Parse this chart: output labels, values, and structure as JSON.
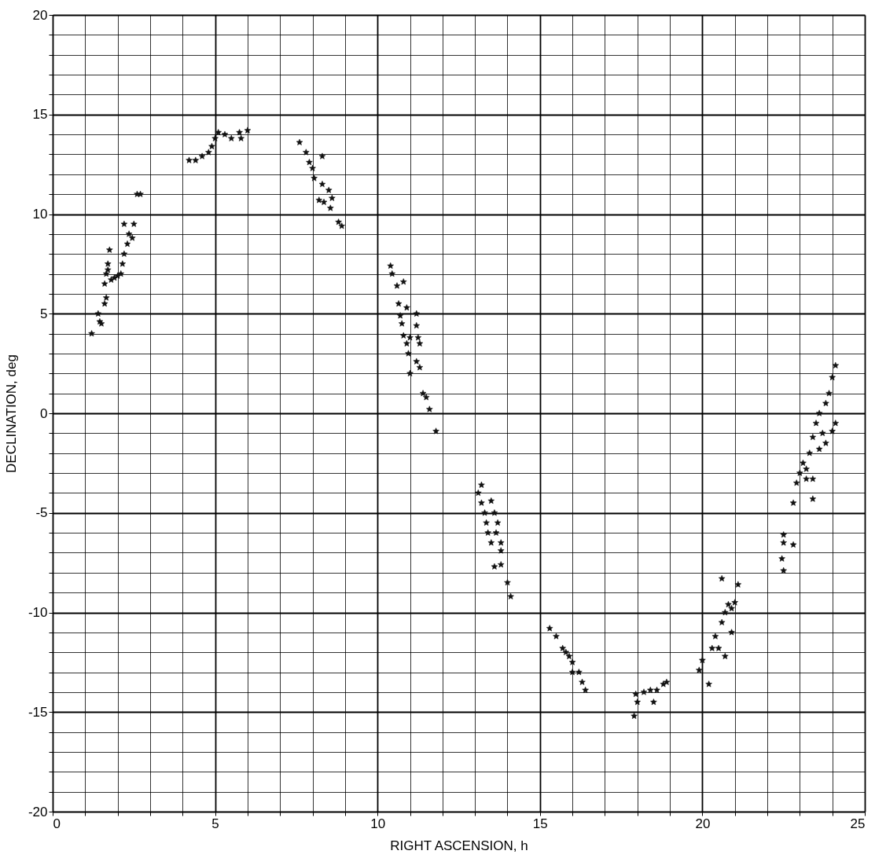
{
  "chart_data": {
    "type": "scatter",
    "xlabel": "RIGHT ASCENSION, h",
    "ylabel": "DECLINATION, deg",
    "xlim": [
      0,
      25
    ],
    "ylim": [
      -20,
      20
    ],
    "xticks": [
      0,
      {
        "value": 1,
        "label": null
      },
      {
        "value": 2,
        "label": null
      },
      {
        "value": 3,
        "label": null
      },
      {
        "value": 4,
        "label": null
      },
      5,
      {
        "value": 6,
        "label": null
      },
      {
        "value": 7,
        "label": null
      },
      {
        "value": 8,
        "label": null
      },
      {
        "value": 9,
        "label": null
      },
      10,
      {
        "value": 11,
        "label": null
      },
      {
        "value": 12,
        "label": null
      },
      {
        "value": 13,
        "label": null
      },
      {
        "value": 14,
        "label": null
      },
      15,
      {
        "value": 16,
        "label": null
      },
      {
        "value": 17,
        "label": null
      },
      {
        "value": 18,
        "label": null
      },
      {
        "value": 19,
        "label": null
      },
      20,
      {
        "value": 21,
        "label": null
      },
      {
        "value": 22,
        "label": null
      },
      {
        "value": 23,
        "label": null
      },
      {
        "value": 24,
        "label": null
      },
      25
    ],
    "yticks": [
      -20,
      {
        "value": -19,
        "label": null
      },
      {
        "value": -18,
        "label": null
      },
      {
        "value": -17,
        "label": null
      },
      {
        "value": -16,
        "label": null
      },
      -15,
      {
        "value": -14,
        "label": null
      },
      {
        "value": -13,
        "label": null
      },
      {
        "value": -12,
        "label": null
      },
      {
        "value": -11,
        "label": null
      },
      -10,
      {
        "value": -9,
        "label": null
      },
      {
        "value": -8,
        "label": null
      },
      {
        "value": -7,
        "label": null
      },
      {
        "value": -6,
        "label": null
      },
      -5,
      {
        "value": -4,
        "label": null
      },
      {
        "value": -3,
        "label": null
      },
      {
        "value": -2,
        "label": null
      },
      {
        "value": -1,
        "label": null
      },
      0,
      {
        "value": 1,
        "label": null
      },
      {
        "value": 2,
        "label": null
      },
      {
        "value": 3,
        "label": null
      },
      {
        "value": 4,
        "label": null
      },
      5,
      {
        "value": 6,
        "label": null
      },
      {
        "value": 7,
        "label": null
      },
      {
        "value": 8,
        "label": null
      },
      {
        "value": 9,
        "label": null
      },
      10,
      {
        "value": 11,
        "label": null
      },
      {
        "value": 12,
        "label": null
      },
      {
        "value": 13,
        "label": null
      },
      {
        "value": 14,
        "label": null
      },
      15,
      {
        "value": 16,
        "label": null
      },
      {
        "value": 17,
        "label": null
      },
      {
        "value": 18,
        "label": null
      },
      {
        "value": 19,
        "label": null
      },
      20
    ],
    "grid": true,
    "marker": "star",
    "series": [
      {
        "color": "#111111",
        "x": [
          1.2,
          1.4,
          1.45,
          1.5,
          1.6,
          1.65,
          1.6,
          1.65,
          1.7,
          1.75,
          1.8,
          1.9,
          1.7,
          2.0,
          2.1,
          2.15,
          2.2,
          2.3,
          2.35,
          2.2,
          2.5,
          2.45,
          2.6,
          2.7,
          4.2,
          4.4,
          4.6,
          4.8,
          4.9,
          5.0,
          5.1,
          5.3,
          5.5,
          5.8,
          5.75,
          6.0,
          7.6,
          7.8,
          7.9,
          8.0,
          8.05,
          8.3,
          8.3,
          8.2,
          8.35,
          8.5,
          8.6,
          8.55,
          8.8,
          8.9,
          10.4,
          10.45,
          10.6,
          10.8,
          10.65,
          10.7,
          10.75,
          10.9,
          10.8,
          10.9,
          10.95,
          11.0,
          11.2,
          11.2,
          11.25,
          11.3,
          11.2,
          11.3,
          11.0,
          11.4,
          11.5,
          11.6,
          11.8,
          13.1,
          13.2,
          13.2,
          13.3,
          13.35,
          13.4,
          13.5,
          13.5,
          13.6,
          13.7,
          13.65,
          13.8,
          13.8,
          13.6,
          13.8,
          14.0,
          14.1,
          15.3,
          15.5,
          15.7,
          15.8,
          15.9,
          16.0,
          16.0,
          16.2,
          16.3,
          16.4,
          17.9,
          17.95,
          18.0,
          18.2,
          18.4,
          18.6,
          18.5,
          18.8,
          18.9,
          19.9,
          20.0,
          20.2,
          20.3,
          20.4,
          20.5,
          20.6,
          20.7,
          20.8,
          20.7,
          21.0,
          21.1,
          20.6,
          20.9,
          20.9,
          22.5,
          22.45,
          22.5,
          22.5,
          22.8,
          22.8,
          22.9,
          23.0,
          23.1,
          23.3,
          23.4,
          23.5,
          23.6,
          23.2,
          23.4,
          23.6,
          23.7,
          23.8,
          23.9,
          24.0,
          24.1,
          24.0,
          24.1,
          23.8,
          23.4,
          23.2
        ],
        "values": [
          4.0,
          5.0,
          4.6,
          4.5,
          5.5,
          5.8,
          6.5,
          7.0,
          7.5,
          8.2,
          6.7,
          6.8,
          7.2,
          6.9,
          7.0,
          7.5,
          8.0,
          8.5,
          9.0,
          9.5,
          9.5,
          8.8,
          11.0,
          11.0,
          12.7,
          12.7,
          12.9,
          13.1,
          13.4,
          13.8,
          14.1,
          14.0,
          13.8,
          13.8,
          14.1,
          14.2,
          13.6,
          13.1,
          12.6,
          12.3,
          11.8,
          12.9,
          11.5,
          10.7,
          10.6,
          11.2,
          10.8,
          10.3,
          9.6,
          9.4,
          7.4,
          7.0,
          6.4,
          6.6,
          5.5,
          4.9,
          4.5,
          5.3,
          3.9,
          3.5,
          3.0,
          3.8,
          5.0,
          4.4,
          3.8,
          3.5,
          2.6,
          2.3,
          2.0,
          1.0,
          0.8,
          0.2,
          -0.9,
          -4.0,
          -3.6,
          -4.5,
          -5.0,
          -5.5,
          -6.0,
          -6.5,
          -4.4,
          -5.0,
          -5.5,
          -6.0,
          -6.5,
          -6.9,
          -7.7,
          -7.6,
          -8.5,
          -9.2,
          -10.8,
          -11.2,
          -11.8,
          -12.0,
          -12.2,
          -12.5,
          -13.0,
          -13.0,
          -13.5,
          -13.9,
          -15.2,
          -14.1,
          -14.5,
          -14.0,
          -13.9,
          -13.9,
          -14.5,
          -13.6,
          -13.5,
          -12.9,
          -12.4,
          -13.6,
          -11.8,
          -11.2,
          -11.8,
          -10.5,
          -10.0,
          -9.6,
          -12.2,
          -9.5,
          -8.6,
          -8.3,
          -11.0,
          -9.8,
          -7.9,
          -7.3,
          -6.5,
          -6.1,
          -6.6,
          -4.5,
          -3.5,
          -3.0,
          -2.5,
          -2.0,
          -1.2,
          -0.5,
          0.0,
          -2.8,
          -3.3,
          -1.8,
          -1.0,
          0.5,
          1.0,
          1.8,
          2.4,
          -0.9,
          -0.5,
          -1.5,
          -4.3,
          -3.3
        ]
      }
    ]
  }
}
